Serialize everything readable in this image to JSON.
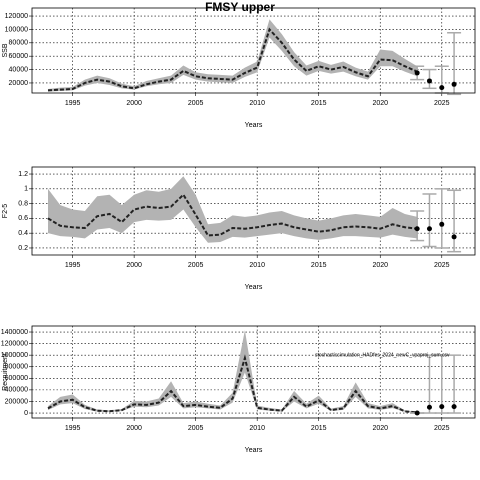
{
  "chart_data": [
    {
      "type": "line",
      "title": "FMSY upper",
      "xlabel": "Years",
      "ylabel": "SSB",
      "xlim": [
        1991.7,
        2027.7
      ],
      "xticks": [
        1995,
        2000,
        2005,
        2010,
        2015,
        2020,
        2025
      ],
      "ylim": [
        5000,
        132000
      ],
      "yticks": [
        20000,
        40000,
        60000,
        80000,
        100000,
        120000
      ],
      "x": [
        1993,
        1994,
        1995,
        1996,
        1997,
        1998,
        1999,
        2000,
        2001,
        2002,
        2003,
        2004,
        2005,
        2006,
        2007,
        2008,
        2009,
        2010,
        2011,
        2012,
        2013,
        2014,
        2015,
        2016,
        2017,
        2018,
        2019,
        2020,
        2021,
        2022,
        2023
      ],
      "median": [
        9000,
        10000,
        11000,
        20000,
        25000,
        22000,
        15000,
        12000,
        18000,
        22000,
        25000,
        38000,
        30000,
        27000,
        26000,
        25000,
        35000,
        43000,
        100000,
        80000,
        55000,
        38000,
        45000,
        40000,
        44000,
        36000,
        30000,
        55000,
        54000,
        45000,
        37000
      ],
      "lower": [
        7000,
        8000,
        9000,
        16000,
        20000,
        17000,
        12000,
        10000,
        15000,
        18000,
        20000,
        32000,
        25000,
        22000,
        21000,
        20000,
        29000,
        36000,
        88000,
        68000,
        45000,
        31000,
        38000,
        34000,
        37000,
        30000,
        25000,
        45000,
        45000,
        37000,
        30000
      ],
      "upper": [
        11000,
        13000,
        14000,
        25000,
        31000,
        27000,
        19000,
        15000,
        23000,
        27000,
        31000,
        46000,
        36000,
        33000,
        32000,
        31000,
        43000,
        52000,
        115000,
        93000,
        66000,
        46000,
        53000,
        47000,
        52000,
        43000,
        37000,
        70000,
        68000,
        56000,
        45000
      ],
      "proj_x": [
        2023,
        2024,
        2025,
        2026
      ],
      "proj_values": [
        35000,
        23000,
        13000,
        18000
      ],
      "proj_low": [
        25000,
        12000,
        5000,
        3000
      ],
      "proj_high": [
        45000,
        40000,
        45000,
        95000
      ]
    },
    {
      "type": "line",
      "xlabel": "Years",
      "ylabel": "F2-5",
      "xlim": [
        1991.7,
        2027.7
      ],
      "xticks": [
        1995,
        2000,
        2005,
        2010,
        2015,
        2020,
        2025
      ],
      "ylim": [
        0.105,
        1.295
      ],
      "yticks": [
        0.2,
        0.4,
        0.6,
        0.8,
        1.0,
        1.2
      ],
      "x": [
        1993,
        1994,
        1995,
        1996,
        1997,
        1998,
        1999,
        2000,
        2001,
        2002,
        2003,
        2004,
        2005,
        2006,
        2007,
        2008,
        2009,
        2010,
        2011,
        2012,
        2013,
        2014,
        2015,
        2016,
        2017,
        2018,
        2019,
        2020,
        2021,
        2022,
        2023
      ],
      "median": [
        0.6,
        0.5,
        0.48,
        0.47,
        0.63,
        0.66,
        0.55,
        0.72,
        0.76,
        0.74,
        0.76,
        0.92,
        0.65,
        0.37,
        0.38,
        0.47,
        0.46,
        0.48,
        0.51,
        0.53,
        0.48,
        0.45,
        0.42,
        0.44,
        0.48,
        0.49,
        0.48,
        0.46,
        0.52,
        0.48,
        0.46
      ],
      "lower": [
        0.4,
        0.36,
        0.35,
        0.33,
        0.45,
        0.47,
        0.4,
        0.55,
        0.58,
        0.57,
        0.58,
        0.72,
        0.48,
        0.27,
        0.28,
        0.35,
        0.34,
        0.36,
        0.38,
        0.4,
        0.36,
        0.33,
        0.31,
        0.33,
        0.36,
        0.36,
        0.35,
        0.34,
        0.38,
        0.35,
        0.33
      ],
      "upper": [
        1.0,
        0.78,
        0.72,
        0.7,
        0.9,
        0.92,
        0.78,
        0.92,
        0.98,
        0.96,
        1.0,
        1.17,
        0.92,
        0.52,
        0.54,
        0.64,
        0.62,
        0.64,
        0.68,
        0.7,
        0.64,
        0.6,
        0.57,
        0.6,
        0.64,
        0.66,
        0.64,
        0.62,
        0.74,
        0.66,
        0.62
      ],
      "proj_x": [
        2023,
        2024,
        2025,
        2026
      ],
      "proj_values": [
        0.46,
        0.46,
        0.52,
        0.35
      ],
      "proj_low": [
        0.3,
        0.22,
        0.2,
        0.15
      ],
      "proj_high": [
        0.7,
        0.93,
        1.0,
        0.98
      ]
    },
    {
      "type": "line",
      "xlabel": "Years",
      "ylabel": "Recruitment",
      "annotation": "stochasticsimulation_HADfes_2024_newC_vpaproj_sum.csv",
      "xlim": [
        1991.7,
        2027.7
      ],
      "xticks": [
        1995,
        2000,
        2005,
        2010,
        2015,
        2020,
        2025
      ],
      "ylim": [
        -86000,
        1504000
      ],
      "yticks": [
        0,
        200000,
        400000,
        600000,
        800000,
        1000000,
        1200000,
        1400000
      ],
      "x": [
        1993,
        1994,
        1995,
        1996,
        1997,
        1998,
        1999,
        2000,
        2001,
        2002,
        2003,
        2004,
        2005,
        2006,
        2007,
        2008,
        2009,
        2010,
        2011,
        2012,
        2013,
        2014,
        2015,
        2016,
        2017,
        2018,
        2019,
        2020,
        2021,
        2022,
        2023
      ],
      "median": [
        80000,
        200000,
        230000,
        100000,
        40000,
        30000,
        50000,
        150000,
        140000,
        180000,
        380000,
        120000,
        140000,
        110000,
        90000,
        250000,
        950000,
        90000,
        60000,
        40000,
        280000,
        110000,
        220000,
        50000,
        80000,
        380000,
        120000,
        80000,
        120000,
        30000,
        10000
      ],
      "lower": [
        50000,
        150000,
        170000,
        70000,
        25000,
        20000,
        35000,
        110000,
        100000,
        130000,
        280000,
        80000,
        100000,
        80000,
        60000,
        180000,
        700000,
        60000,
        40000,
        25000,
        200000,
        80000,
        160000,
        35000,
        55000,
        280000,
        80000,
        55000,
        85000,
        20000,
        5000
      ],
      "upper": [
        120000,
        280000,
        320000,
        140000,
        60000,
        45000,
        70000,
        210000,
        200000,
        250000,
        550000,
        170000,
        200000,
        160000,
        130000,
        350000,
        1430000,
        130000,
        90000,
        60000,
        380000,
        160000,
        300000,
        75000,
        120000,
        530000,
        170000,
        120000,
        170000,
        45000,
        20000
      ],
      "proj_x": [
        2023,
        2024,
        2025,
        2026
      ],
      "proj_values": [
        0,
        100000,
        110000,
        110000
      ],
      "proj_low": [
        0,
        0,
        0,
        0
      ],
      "proj_high": [
        0,
        1000000,
        1000000,
        1000000
      ]
    }
  ]
}
